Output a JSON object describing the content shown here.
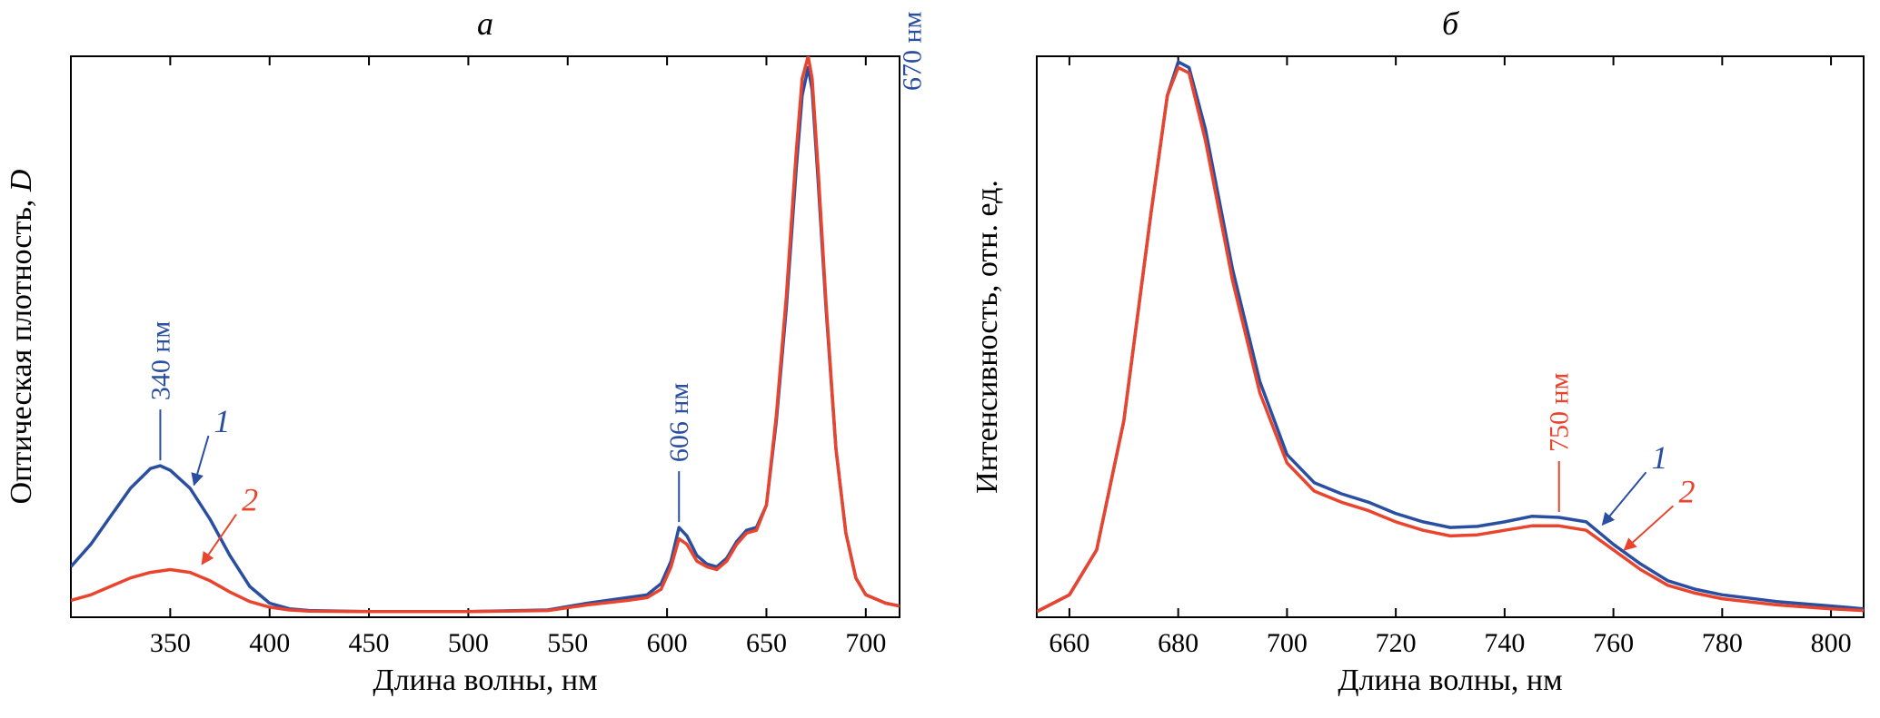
{
  "colors": {
    "series1": "#2b4fa0",
    "series2": "#e8442e",
    "axis": "#000000"
  },
  "chart_data": [
    {
      "type": "line",
      "panel_label": "а",
      "title": "а",
      "xlabel": "Длина волны, нм",
      "ylabel": "Оптическая плотность, D",
      "xlim": [
        300,
        717
      ],
      "ylim": [
        0,
        1.0
      ],
      "xticks": [
        350,
        400,
        450,
        500,
        550,
        600,
        650,
        700
      ],
      "yticks_shown": false,
      "series": [
        {
          "name": "1",
          "color": "#2b4fa0",
          "points": [
            [
              300,
              0.09
            ],
            [
              310,
              0.13
            ],
            [
              320,
              0.18
            ],
            [
              330,
              0.23
            ],
            [
              340,
              0.265
            ],
            [
              345,
              0.27
            ],
            [
              350,
              0.262
            ],
            [
              360,
              0.23
            ],
            [
              370,
              0.175
            ],
            [
              380,
              0.11
            ],
            [
              390,
              0.055
            ],
            [
              400,
              0.025
            ],
            [
              410,
              0.015
            ],
            [
              420,
              0.012
            ],
            [
              450,
              0.01
            ],
            [
              500,
              0.01
            ],
            [
              540,
              0.013
            ],
            [
              560,
              0.025
            ],
            [
              580,
              0.035
            ],
            [
              590,
              0.04
            ],
            [
              597,
              0.06
            ],
            [
              602,
              0.1
            ],
            [
              606,
              0.16
            ],
            [
              610,
              0.145
            ],
            [
              615,
              0.11
            ],
            [
              620,
              0.095
            ],
            [
              625,
              0.09
            ],
            [
              630,
              0.105
            ],
            [
              635,
              0.135
            ],
            [
              640,
              0.155
            ],
            [
              645,
              0.16
            ],
            [
              650,
              0.2
            ],
            [
              655,
              0.35
            ],
            [
              660,
              0.55
            ],
            [
              665,
              0.8
            ],
            [
              668,
              0.93
            ],
            [
              671,
              0.98
            ],
            [
              673,
              0.94
            ],
            [
              676,
              0.78
            ],
            [
              680,
              0.55
            ],
            [
              685,
              0.3
            ],
            [
              690,
              0.15
            ],
            [
              695,
              0.07
            ],
            [
              700,
              0.04
            ],
            [
              710,
              0.025
            ],
            [
              717,
              0.02
            ]
          ]
        },
        {
          "name": "2",
          "color": "#e8442e",
          "points": [
            [
              300,
              0.03
            ],
            [
              310,
              0.04
            ],
            [
              320,
              0.055
            ],
            [
              330,
              0.07
            ],
            [
              340,
              0.08
            ],
            [
              350,
              0.085
            ],
            [
              360,
              0.08
            ],
            [
              370,
              0.065
            ],
            [
              380,
              0.045
            ],
            [
              390,
              0.028
            ],
            [
              400,
              0.018
            ],
            [
              410,
              0.013
            ],
            [
              420,
              0.011
            ],
            [
              450,
              0.01
            ],
            [
              500,
              0.01
            ],
            [
              540,
              0.012
            ],
            [
              560,
              0.022
            ],
            [
              580,
              0.03
            ],
            [
              590,
              0.035
            ],
            [
              597,
              0.05
            ],
            [
              602,
              0.09
            ],
            [
              606,
              0.14
            ],
            [
              610,
              0.13
            ],
            [
              615,
              0.1
            ],
            [
              620,
              0.09
            ],
            [
              625,
              0.085
            ],
            [
              630,
              0.1
            ],
            [
              635,
              0.13
            ],
            [
              640,
              0.15
            ],
            [
              645,
              0.155
            ],
            [
              650,
              0.2
            ],
            [
              655,
              0.36
            ],
            [
              660,
              0.57
            ],
            [
              665,
              0.83
            ],
            [
              668,
              0.96
            ],
            [
              671,
              1.0
            ],
            [
              673,
              0.96
            ],
            [
              676,
              0.8
            ],
            [
              680,
              0.56
            ],
            [
              685,
              0.3
            ],
            [
              690,
              0.15
            ],
            [
              695,
              0.07
            ],
            [
              700,
              0.04
            ],
            [
              710,
              0.025
            ],
            [
              717,
              0.02
            ]
          ]
        }
      ],
      "annotations": [
        {
          "text": "340 нм",
          "x": 345,
          "y": 0.27,
          "color": "#2b4fa0"
        },
        {
          "text": "606 нм",
          "x": 606,
          "y": 0.16,
          "color": "#2b4fa0"
        },
        {
          "text": "670 нм",
          "x": 650,
          "y": 0.98,
          "color": "#2b4fa0"
        }
      ],
      "curve_labels": [
        {
          "text": "1",
          "color": "#2b4fa0",
          "x": 372,
          "y": 0.33,
          "target_x": 362,
          "target_y": 0.236
        },
        {
          "text": "2",
          "color": "#e8442e",
          "x": 386,
          "y": 0.19,
          "target_x": 366,
          "target_y": 0.095
        }
      ]
    },
    {
      "type": "line",
      "panel_label": "б",
      "title": "б",
      "xlabel": "Длина волны, нм",
      "ylabel": "Интенсивность, отн. ед.",
      "xlim": [
        654,
        806
      ],
      "ylim": [
        0,
        1.0
      ],
      "xticks": [
        660,
        680,
        700,
        720,
        740,
        760,
        780,
        800
      ],
      "yticks_shown": false,
      "series": [
        {
          "name": "1",
          "color": "#2b4fa0",
          "points": [
            [
              654,
              0.01
            ],
            [
              660,
              0.04
            ],
            [
              665,
              0.12
            ],
            [
              670,
              0.35
            ],
            [
              675,
              0.72
            ],
            [
              678,
              0.93
            ],
            [
              680,
              0.99
            ],
            [
              682,
              0.98
            ],
            [
              685,
              0.87
            ],
            [
              690,
              0.62
            ],
            [
              695,
              0.42
            ],
            [
              700,
              0.29
            ],
            [
              705,
              0.24
            ],
            [
              710,
              0.22
            ],
            [
              715,
              0.205
            ],
            [
              720,
              0.185
            ],
            [
              725,
              0.17
            ],
            [
              730,
              0.16
            ],
            [
              735,
              0.162
            ],
            [
              740,
              0.17
            ],
            [
              745,
              0.18
            ],
            [
              750,
              0.178
            ],
            [
              755,
              0.17
            ],
            [
              760,
              0.13
            ],
            [
              765,
              0.095
            ],
            [
              770,
              0.065
            ],
            [
              775,
              0.05
            ],
            [
              780,
              0.04
            ],
            [
              790,
              0.028
            ],
            [
              800,
              0.02
            ],
            [
              806,
              0.015
            ]
          ]
        },
        {
          "name": "2",
          "color": "#e8442e",
          "points": [
            [
              654,
              0.01
            ],
            [
              660,
              0.04
            ],
            [
              665,
              0.12
            ],
            [
              670,
              0.35
            ],
            [
              675,
              0.72
            ],
            [
              678,
              0.93
            ],
            [
              680,
              0.98
            ],
            [
              682,
              0.97
            ],
            [
              685,
              0.85
            ],
            [
              690,
              0.6
            ],
            [
              695,
              0.4
            ],
            [
              700,
              0.275
            ],
            [
              705,
              0.225
            ],
            [
              710,
              0.205
            ],
            [
              715,
              0.19
            ],
            [
              720,
              0.17
            ],
            [
              725,
              0.155
            ],
            [
              730,
              0.145
            ],
            [
              735,
              0.147
            ],
            [
              740,
              0.155
            ],
            [
              745,
              0.163
            ],
            [
              750,
              0.163
            ],
            [
              755,
              0.155
            ],
            [
              760,
              0.12
            ],
            [
              765,
              0.085
            ],
            [
              770,
              0.057
            ],
            [
              775,
              0.043
            ],
            [
              780,
              0.033
            ],
            [
              790,
              0.022
            ],
            [
              800,
              0.015
            ],
            [
              806,
              0.012
            ]
          ]
        }
      ],
      "annotations": [
        {
          "text": "750 нм",
          "x": 750,
          "y": 0.178,
          "color": "#e8442e"
        }
      ],
      "curve_labels": [
        {
          "text": "1",
          "color": "#2b4fa0",
          "x": 767,
          "y": 0.265,
          "target_x": 758,
          "target_y": 0.165
        },
        {
          "text": "2",
          "color": "#e8442e",
          "x": 772,
          "y": 0.205,
          "target_x": 762,
          "target_y": 0.12
        }
      ]
    }
  ]
}
